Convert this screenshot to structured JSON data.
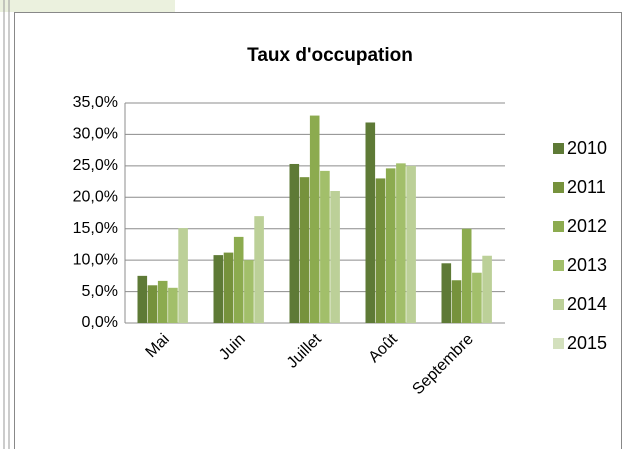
{
  "chart_data": {
    "type": "bar",
    "title": "Taux d'occupation",
    "categories": [
      "Mai",
      "Juin",
      "Juillet",
      "Août",
      "Septembre"
    ],
    "series": [
      {
        "name": "2010",
        "color": "#5e7a36",
        "values": [
          7.5,
          10.8,
          25.3,
          31.9,
          9.5
        ]
      },
      {
        "name": "2011",
        "color": "#76923c",
        "values": [
          6.0,
          11.2,
          23.2,
          23.0,
          6.8
        ]
      },
      {
        "name": "2012",
        "color": "#8cab4f",
        "values": [
          6.7,
          13.7,
          33.0,
          24.6,
          15.0
        ]
      },
      {
        "name": "2013",
        "color": "#a2bf6a",
        "values": [
          5.6,
          10.0,
          24.2,
          25.4,
          8.0
        ]
      },
      {
        "name": "2014",
        "color": "#bcd098",
        "values": [
          15.1,
          17.0,
          21.0,
          25.0,
          10.7
        ]
      },
      {
        "name": "2015",
        "color": "#d3e0bd",
        "values": [
          null,
          null,
          null,
          null,
          null
        ]
      }
    ],
    "ylim": [
      0,
      35
    ],
    "yticks": [
      {
        "value": 0,
        "label": "0,0%"
      },
      {
        "value": 5,
        "label": "5,0%"
      },
      {
        "value": 10,
        "label": "10,0%"
      },
      {
        "value": 15,
        "label": "15,0%"
      },
      {
        "value": 20,
        "label": "20,0%"
      },
      {
        "value": 25,
        "label": "25,0%"
      },
      {
        "value": 30,
        "label": "30,0%"
      },
      {
        "value": 35,
        "label": "35,0%"
      }
    ],
    "grid": true,
    "legend": "right"
  }
}
